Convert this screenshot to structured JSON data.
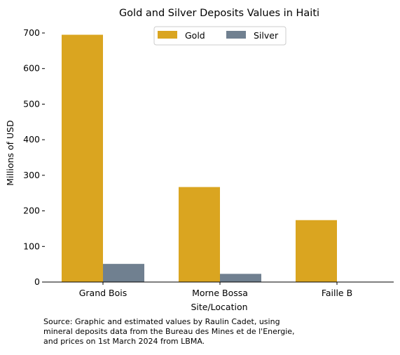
{
  "chart_data": {
    "type": "bar",
    "title": "Gold and Silver Deposits Values in Haiti",
    "xlabel": "Site/Location",
    "ylabel": "Millions of USD",
    "categories": [
      "Grand Bois",
      "Morne Bossa",
      "Faille B"
    ],
    "series": [
      {
        "name": "Gold",
        "values": [
          695,
          267,
          174
        ],
        "color": "#DAA520"
      },
      {
        "name": "Silver",
        "values": [
          51,
          23,
          0
        ],
        "color": "#708090"
      }
    ],
    "ylim": [
      0,
      700
    ],
    "yticks": [
      0,
      100,
      200,
      300,
      400,
      500,
      600,
      700
    ],
    "grid": false,
    "legend_position": "top-center"
  },
  "caption": {
    "lines": [
      "Source: Graphic and estimated values by Raulin Cadet, using",
      "mineral deposits data from the Bureau des Mines et de l'Energie,",
      "and prices on 1st March 2024 from LBMA."
    ]
  }
}
